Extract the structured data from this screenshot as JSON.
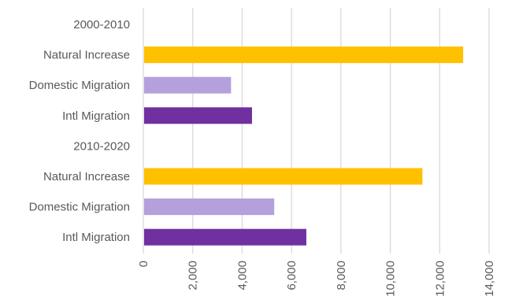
{
  "chart_data": {
    "type": "bar",
    "orientation": "horizontal",
    "categories": [
      "2000-2010",
      "Natural Increase",
      "Domestic Migration",
      "Intl Migration",
      "2010-2020",
      "Natural Increase",
      "Domestic Migration",
      "Intl Migration"
    ],
    "values": [
      null,
      12950,
      3550,
      4400,
      null,
      11300,
      5300,
      6600
    ],
    "colors": [
      null,
      "#ffc000",
      "#b4a0dc",
      "#7030a0",
      null,
      "#ffc000",
      "#b4a0dc",
      "#7030a0"
    ],
    "title": "",
    "xlabel": "",
    "ylabel": "",
    "xlim": [
      0,
      14000
    ],
    "ticks": [
      0,
      2000,
      4000,
      6000,
      8000,
      10000,
      12000,
      14000
    ],
    "tick_labels": [
      "0",
      "2,000",
      "4,000",
      "6,000",
      "8,000",
      "10,000",
      "12,000",
      "14,000"
    ],
    "grid": true,
    "legend": "none",
    "gridline_color": "#d9d9d9",
    "text_color": "#595959"
  }
}
